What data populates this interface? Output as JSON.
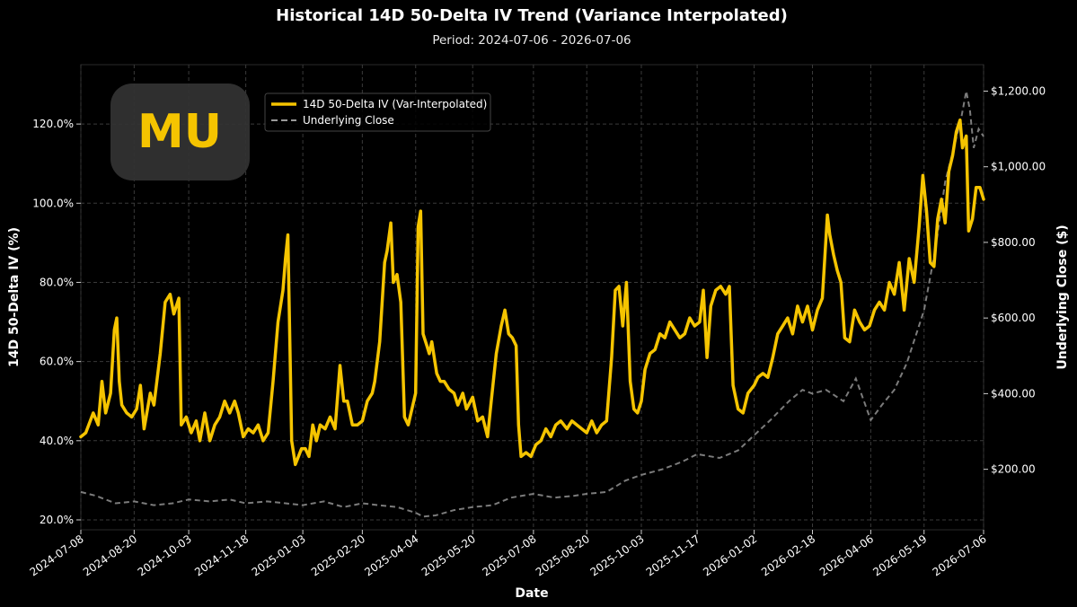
{
  "chart_data": {
    "type": "line",
    "title": "Historical 14D 50-Delta IV Trend (Variance Interpolated)",
    "subtitle": "Period: 2024-07-06 - 2026-07-06",
    "xlabel": "Date",
    "ylabel": "14D 50-Delta IV (%)",
    "y2label": "Underlying Close ($)",
    "logo": "MU",
    "legend_placement": "top-left",
    "grid": true,
    "xlim": [
      "2024-07-08",
      "2026-07-06"
    ],
    "ylim": [
      17.5,
      135
    ],
    "y2lim": [
      40,
      1270
    ],
    "x_ticks": [
      "2024-07-08",
      "2024-08-20",
      "2024-10-03",
      "2024-11-18",
      "2025-01-03",
      "2025-02-20",
      "2025-04-04",
      "2025-05-20",
      "2025-07-08",
      "2025-08-20",
      "2025-10-03",
      "2025-11-17",
      "2026-01-02",
      "2026-02-18",
      "2026-04-06",
      "2026-05-19",
      "2026-07-06"
    ],
    "y_ticks": [
      "20.0%",
      "40.0%",
      "60.0%",
      "80.0%",
      "100.0%",
      "120.0%"
    ],
    "y_tick_values": [
      20,
      40,
      60,
      80,
      100,
      120
    ],
    "y2_ticks": [
      "$200.00",
      "$400.00",
      "$600.00",
      "$800.00",
      "$1,000.00",
      "$1,200.00"
    ],
    "y2_tick_values": [
      200,
      400,
      600,
      800,
      1000,
      1200
    ],
    "colors": {
      "iv": "#f5c400",
      "close": "#9a9a9a",
      "grid": "#3a3a3a",
      "logo_bg": "#333333"
    },
    "series": [
      {
        "name": "14D 50-Delta IV (Var-Interpolated)",
        "axis": "left",
        "style": "solid",
        "points": [
          [
            "2024-07-08",
            41
          ],
          [
            "2024-07-12",
            42
          ],
          [
            "2024-07-18",
            47
          ],
          [
            "2024-07-22",
            44
          ],
          [
            "2024-07-25",
            55
          ],
          [
            "2024-07-28",
            47
          ],
          [
            "2024-08-01",
            52
          ],
          [
            "2024-08-04",
            68
          ],
          [
            "2024-08-06",
            71
          ],
          [
            "2024-08-08",
            55
          ],
          [
            "2024-08-10",
            49
          ],
          [
            "2024-08-14",
            47
          ],
          [
            "2024-08-18",
            46
          ],
          [
            "2024-08-22",
            48
          ],
          [
            "2024-08-25",
            54
          ],
          [
            "2024-08-28",
            43
          ],
          [
            "2024-09-02",
            52
          ],
          [
            "2024-09-05",
            49
          ],
          [
            "2024-09-10",
            62
          ],
          [
            "2024-09-14",
            75
          ],
          [
            "2024-09-18",
            77
          ],
          [
            "2024-09-21",
            72
          ],
          [
            "2024-09-25",
            76
          ],
          [
            "2024-09-27",
            44
          ],
          [
            "2024-10-01",
            46
          ],
          [
            "2024-10-05",
            42
          ],
          [
            "2024-10-09",
            45
          ],
          [
            "2024-10-12",
            40
          ],
          [
            "2024-10-16",
            47
          ],
          [
            "2024-10-20",
            40
          ],
          [
            "2024-10-24",
            44
          ],
          [
            "2024-10-28",
            46
          ],
          [
            "2024-11-01",
            50
          ],
          [
            "2024-11-05",
            47
          ],
          [
            "2024-11-09",
            50
          ],
          [
            "2024-11-12",
            47
          ],
          [
            "2024-11-16",
            41
          ],
          [
            "2024-11-20",
            43
          ],
          [
            "2024-11-24",
            42
          ],
          [
            "2024-11-28",
            44
          ],
          [
            "2024-12-02",
            40
          ],
          [
            "2024-12-06",
            42
          ],
          [
            "2024-12-10",
            55
          ],
          [
            "2024-12-14",
            70
          ],
          [
            "2024-12-18",
            78
          ],
          [
            "2024-12-20",
            86
          ],
          [
            "2024-12-22",
            92
          ],
          [
            "2024-12-25",
            40
          ],
          [
            "2024-12-28",
            34
          ],
          [
            "2025-01-02",
            38
          ],
          [
            "2025-01-05",
            38
          ],
          [
            "2025-01-08",
            36
          ],
          [
            "2025-01-11",
            44
          ],
          [
            "2025-01-14",
            40
          ],
          [
            "2025-01-17",
            44
          ],
          [
            "2025-01-21",
            43
          ],
          [
            "2025-01-25",
            46
          ],
          [
            "2025-01-29",
            43
          ],
          [
            "2025-02-02",
            59
          ],
          [
            "2025-02-05",
            50
          ],
          [
            "2025-02-08",
            50
          ],
          [
            "2025-02-12",
            44
          ],
          [
            "2025-02-16",
            44
          ],
          [
            "2025-02-20",
            45
          ],
          [
            "2025-02-24",
            50
          ],
          [
            "2025-02-28",
            52
          ],
          [
            "2025-03-02",
            55
          ],
          [
            "2025-03-06",
            65
          ],
          [
            "2025-03-10",
            85
          ],
          [
            "2025-03-12",
            88
          ],
          [
            "2025-03-15",
            95
          ],
          [
            "2025-03-17",
            80
          ],
          [
            "2025-03-20",
            82
          ],
          [
            "2025-03-23",
            75
          ],
          [
            "2025-03-26",
            46
          ],
          [
            "2025-03-29",
            44
          ],
          [
            "2025-04-01",
            48
          ],
          [
            "2025-04-04",
            52
          ],
          [
            "2025-04-06",
            94
          ],
          [
            "2025-04-08",
            98
          ],
          [
            "2025-04-10",
            67
          ],
          [
            "2025-04-13",
            64
          ],
          [
            "2025-04-15",
            62
          ],
          [
            "2025-04-17",
            65
          ],
          [
            "2025-04-21",
            57
          ],
          [
            "2025-04-24",
            55
          ],
          [
            "2025-04-27",
            55
          ],
          [
            "2025-05-01",
            53
          ],
          [
            "2025-05-05",
            52
          ],
          [
            "2025-05-08",
            49
          ],
          [
            "2025-05-12",
            52
          ],
          [
            "2025-05-15",
            48
          ],
          [
            "2025-05-20",
            51
          ],
          [
            "2025-05-24",
            45
          ],
          [
            "2025-05-28",
            46
          ],
          [
            "2025-06-01",
            41
          ],
          [
            "2025-06-04",
            50
          ],
          [
            "2025-06-08",
            62
          ],
          [
            "2025-06-12",
            69
          ],
          [
            "2025-06-15",
            73
          ],
          [
            "2025-06-18",
            67
          ],
          [
            "2025-06-21",
            66
          ],
          [
            "2025-06-24",
            64
          ],
          [
            "2025-06-26",
            44
          ],
          [
            "2025-06-28",
            36
          ],
          [
            "2025-07-02",
            37
          ],
          [
            "2025-07-06",
            36
          ],
          [
            "2025-07-10",
            39
          ],
          [
            "2025-07-14",
            40
          ],
          [
            "2025-07-18",
            43
          ],
          [
            "2025-07-22",
            41
          ],
          [
            "2025-07-26",
            44
          ],
          [
            "2025-07-30",
            45
          ],
          [
            "2025-08-04",
            43
          ],
          [
            "2025-08-08",
            45
          ],
          [
            "2025-08-12",
            44
          ],
          [
            "2025-08-16",
            43
          ],
          [
            "2025-08-20",
            42
          ],
          [
            "2025-08-24",
            45
          ],
          [
            "2025-08-28",
            42
          ],
          [
            "2025-09-01",
            44
          ],
          [
            "2025-09-05",
            45
          ],
          [
            "2025-09-09",
            61
          ],
          [
            "2025-09-12",
            78
          ],
          [
            "2025-09-15",
            79
          ],
          [
            "2025-09-18",
            69
          ],
          [
            "2025-09-21",
            80
          ],
          [
            "2025-09-24",
            55
          ],
          [
            "2025-09-27",
            48
          ],
          [
            "2025-09-30",
            47
          ],
          [
            "2025-10-03",
            50
          ],
          [
            "2025-10-06",
            58
          ],
          [
            "2025-10-10",
            62
          ],
          [
            "2025-10-14",
            63
          ],
          [
            "2025-10-18",
            67
          ],
          [
            "2025-10-22",
            66
          ],
          [
            "2025-10-26",
            70
          ],
          [
            "2025-10-30",
            68
          ],
          [
            "2025-11-03",
            66
          ],
          [
            "2025-11-07",
            67
          ],
          [
            "2025-11-11",
            71
          ],
          [
            "2025-11-15",
            69
          ],
          [
            "2025-11-19",
            70
          ],
          [
            "2025-11-22",
            78
          ],
          [
            "2025-11-25",
            61
          ],
          [
            "2025-11-28",
            74
          ],
          [
            "2025-12-02",
            78
          ],
          [
            "2025-12-06",
            79
          ],
          [
            "2025-12-10",
            77
          ],
          [
            "2025-12-13",
            79
          ],
          [
            "2025-12-16",
            54
          ],
          [
            "2025-12-20",
            48
          ],
          [
            "2025-12-24",
            47
          ],
          [
            "2025-12-28",
            52
          ],
          [
            "2026-01-02",
            54
          ],
          [
            "2026-01-05",
            56
          ],
          [
            "2026-01-09",
            57
          ],
          [
            "2026-01-13",
            56
          ],
          [
            "2026-01-17",
            61
          ],
          [
            "2026-01-21",
            67
          ],
          [
            "2026-01-25",
            69
          ],
          [
            "2026-01-29",
            71
          ],
          [
            "2026-02-02",
            67
          ],
          [
            "2026-02-06",
            74
          ],
          [
            "2026-02-10",
            70
          ],
          [
            "2026-02-14",
            74
          ],
          [
            "2026-02-18",
            68
          ],
          [
            "2026-02-22",
            73
          ],
          [
            "2026-02-26",
            76
          ],
          [
            "2026-03-02",
            97
          ],
          [
            "2026-03-04",
            92
          ],
          [
            "2026-03-07",
            87
          ],
          [
            "2026-03-10",
            83
          ],
          [
            "2026-03-13",
            80
          ],
          [
            "2026-03-16",
            66
          ],
          [
            "2026-03-20",
            65
          ],
          [
            "2026-03-24",
            73
          ],
          [
            "2026-03-28",
            70
          ],
          [
            "2026-04-01",
            68
          ],
          [
            "2026-04-05",
            69
          ],
          [
            "2026-04-09",
            73
          ],
          [
            "2026-04-13",
            75
          ],
          [
            "2026-04-17",
            73
          ],
          [
            "2026-04-21",
            80
          ],
          [
            "2026-04-25",
            77
          ],
          [
            "2026-04-29",
            85
          ],
          [
            "2026-05-03",
            73
          ],
          [
            "2026-05-07",
            86
          ],
          [
            "2026-05-11",
            80
          ],
          [
            "2026-05-15",
            94
          ],
          [
            "2026-05-18",
            107
          ],
          [
            "2026-05-21",
            98
          ],
          [
            "2026-05-24",
            85
          ],
          [
            "2026-05-27",
            84
          ],
          [
            "2026-05-30",
            96
          ],
          [
            "2026-06-02",
            101
          ],
          [
            "2026-06-05",
            95
          ],
          [
            "2026-06-08",
            108
          ],
          [
            "2026-06-11",
            112
          ],
          [
            "2026-06-14",
            118
          ],
          [
            "2026-06-17",
            121
          ],
          [
            "2026-06-19",
            114
          ],
          [
            "2026-06-22",
            117
          ],
          [
            "2026-06-24",
            93
          ],
          [
            "2026-06-27",
            96
          ],
          [
            "2026-06-30",
            104
          ],
          [
            "2026-07-03",
            104
          ],
          [
            "2026-07-06",
            101
          ]
        ]
      },
      {
        "name": "Underlying Close",
        "axis": "right",
        "style": "dashed",
        "points": [
          [
            "2024-07-08",
            140
          ],
          [
            "2024-07-20",
            130
          ],
          [
            "2024-08-05",
            110
          ],
          [
            "2024-08-20",
            115
          ],
          [
            "2024-09-05",
            105
          ],
          [
            "2024-09-20",
            110
          ],
          [
            "2024-10-03",
            120
          ],
          [
            "2024-10-20",
            115
          ],
          [
            "2024-11-05",
            120
          ],
          [
            "2024-11-18",
            110
          ],
          [
            "2024-12-05",
            115
          ],
          [
            "2024-12-20",
            110
          ],
          [
            "2025-01-03",
            105
          ],
          [
            "2025-01-20",
            115
          ],
          [
            "2025-02-05",
            100
          ],
          [
            "2025-02-20",
            110
          ],
          [
            "2025-03-05",
            105
          ],
          [
            "2025-03-20",
            100
          ],
          [
            "2025-04-04",
            85
          ],
          [
            "2025-04-10",
            75
          ],
          [
            "2025-04-20",
            78
          ],
          [
            "2025-05-05",
            92
          ],
          [
            "2025-05-20",
            100
          ],
          [
            "2025-06-05",
            105
          ],
          [
            "2025-06-20",
            125
          ],
          [
            "2025-07-08",
            135
          ],
          [
            "2025-07-25",
            125
          ],
          [
            "2025-08-10",
            130
          ],
          [
            "2025-08-20",
            135
          ],
          [
            "2025-09-05",
            140
          ],
          [
            "2025-09-20",
            170
          ],
          [
            "2025-10-03",
            185
          ],
          [
            "2025-10-20",
            200
          ],
          [
            "2025-11-05",
            220
          ],
          [
            "2025-11-17",
            240
          ],
          [
            "2025-12-05",
            230
          ],
          [
            "2025-12-20",
            250
          ],
          [
            "2026-01-02",
            290
          ],
          [
            "2026-01-15",
            330
          ],
          [
            "2026-01-30",
            380
          ],
          [
            "2026-02-10",
            410
          ],
          [
            "2026-02-18",
            400
          ],
          [
            "2026-03-01",
            410
          ],
          [
            "2026-03-15",
            380
          ],
          [
            "2026-03-25",
            440
          ],
          [
            "2026-04-06",
            330
          ],
          [
            "2026-04-15",
            370
          ],
          [
            "2026-04-25",
            410
          ],
          [
            "2026-05-05",
            480
          ],
          [
            "2026-05-19",
            620
          ],
          [
            "2026-05-28",
            780
          ],
          [
            "2026-06-05",
            960
          ],
          [
            "2026-06-12",
            1050
          ],
          [
            "2026-06-18",
            1130
          ],
          [
            "2026-06-22",
            1200
          ],
          [
            "2026-06-25",
            1150
          ],
          [
            "2026-06-28",
            1050
          ],
          [
            "2026-07-02",
            1100
          ],
          [
            "2026-07-06",
            1080
          ]
        ]
      }
    ]
  }
}
